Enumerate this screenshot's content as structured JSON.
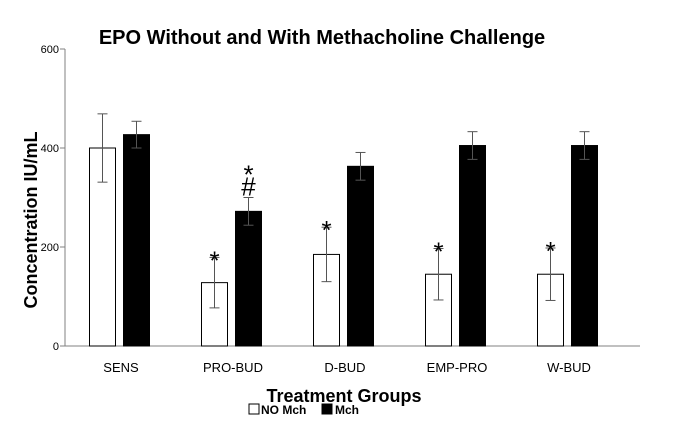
{
  "chart_data": {
    "type": "bar",
    "title": "EPO Without and With Methacholine Challenge",
    "xlabel": "Treatment Groups",
    "ylabel": "Concentration IU/mL",
    "ylim": [
      0,
      600
    ],
    "yticks": [
      "0",
      "200",
      "400",
      "600"
    ],
    "categories": [
      "SENS",
      "PRO-BUD",
      "D-BUD",
      "EMP-PRO",
      "W-BUD"
    ],
    "series": [
      {
        "name": "NO Mch",
        "color": "#ffffff",
        "values": [
          400,
          128,
          185,
          145,
          145
        ],
        "errors": [
          69,
          51,
          55,
          52,
          53
        ],
        "annotations": [
          "",
          "*",
          "*",
          "*",
          "*"
        ]
      },
      {
        "name": "Mch",
        "color": "#000000",
        "values": [
          427,
          272,
          363,
          405,
          405
        ],
        "errors": [
          27,
          28,
          28,
          28,
          28
        ],
        "annotations": [
          "",
          "*\n#",
          "",
          "",
          ""
        ]
      }
    ],
    "legend": [
      "NO Mch",
      "Mch"
    ],
    "legend_position": "bottom-center",
    "grid": false
  }
}
